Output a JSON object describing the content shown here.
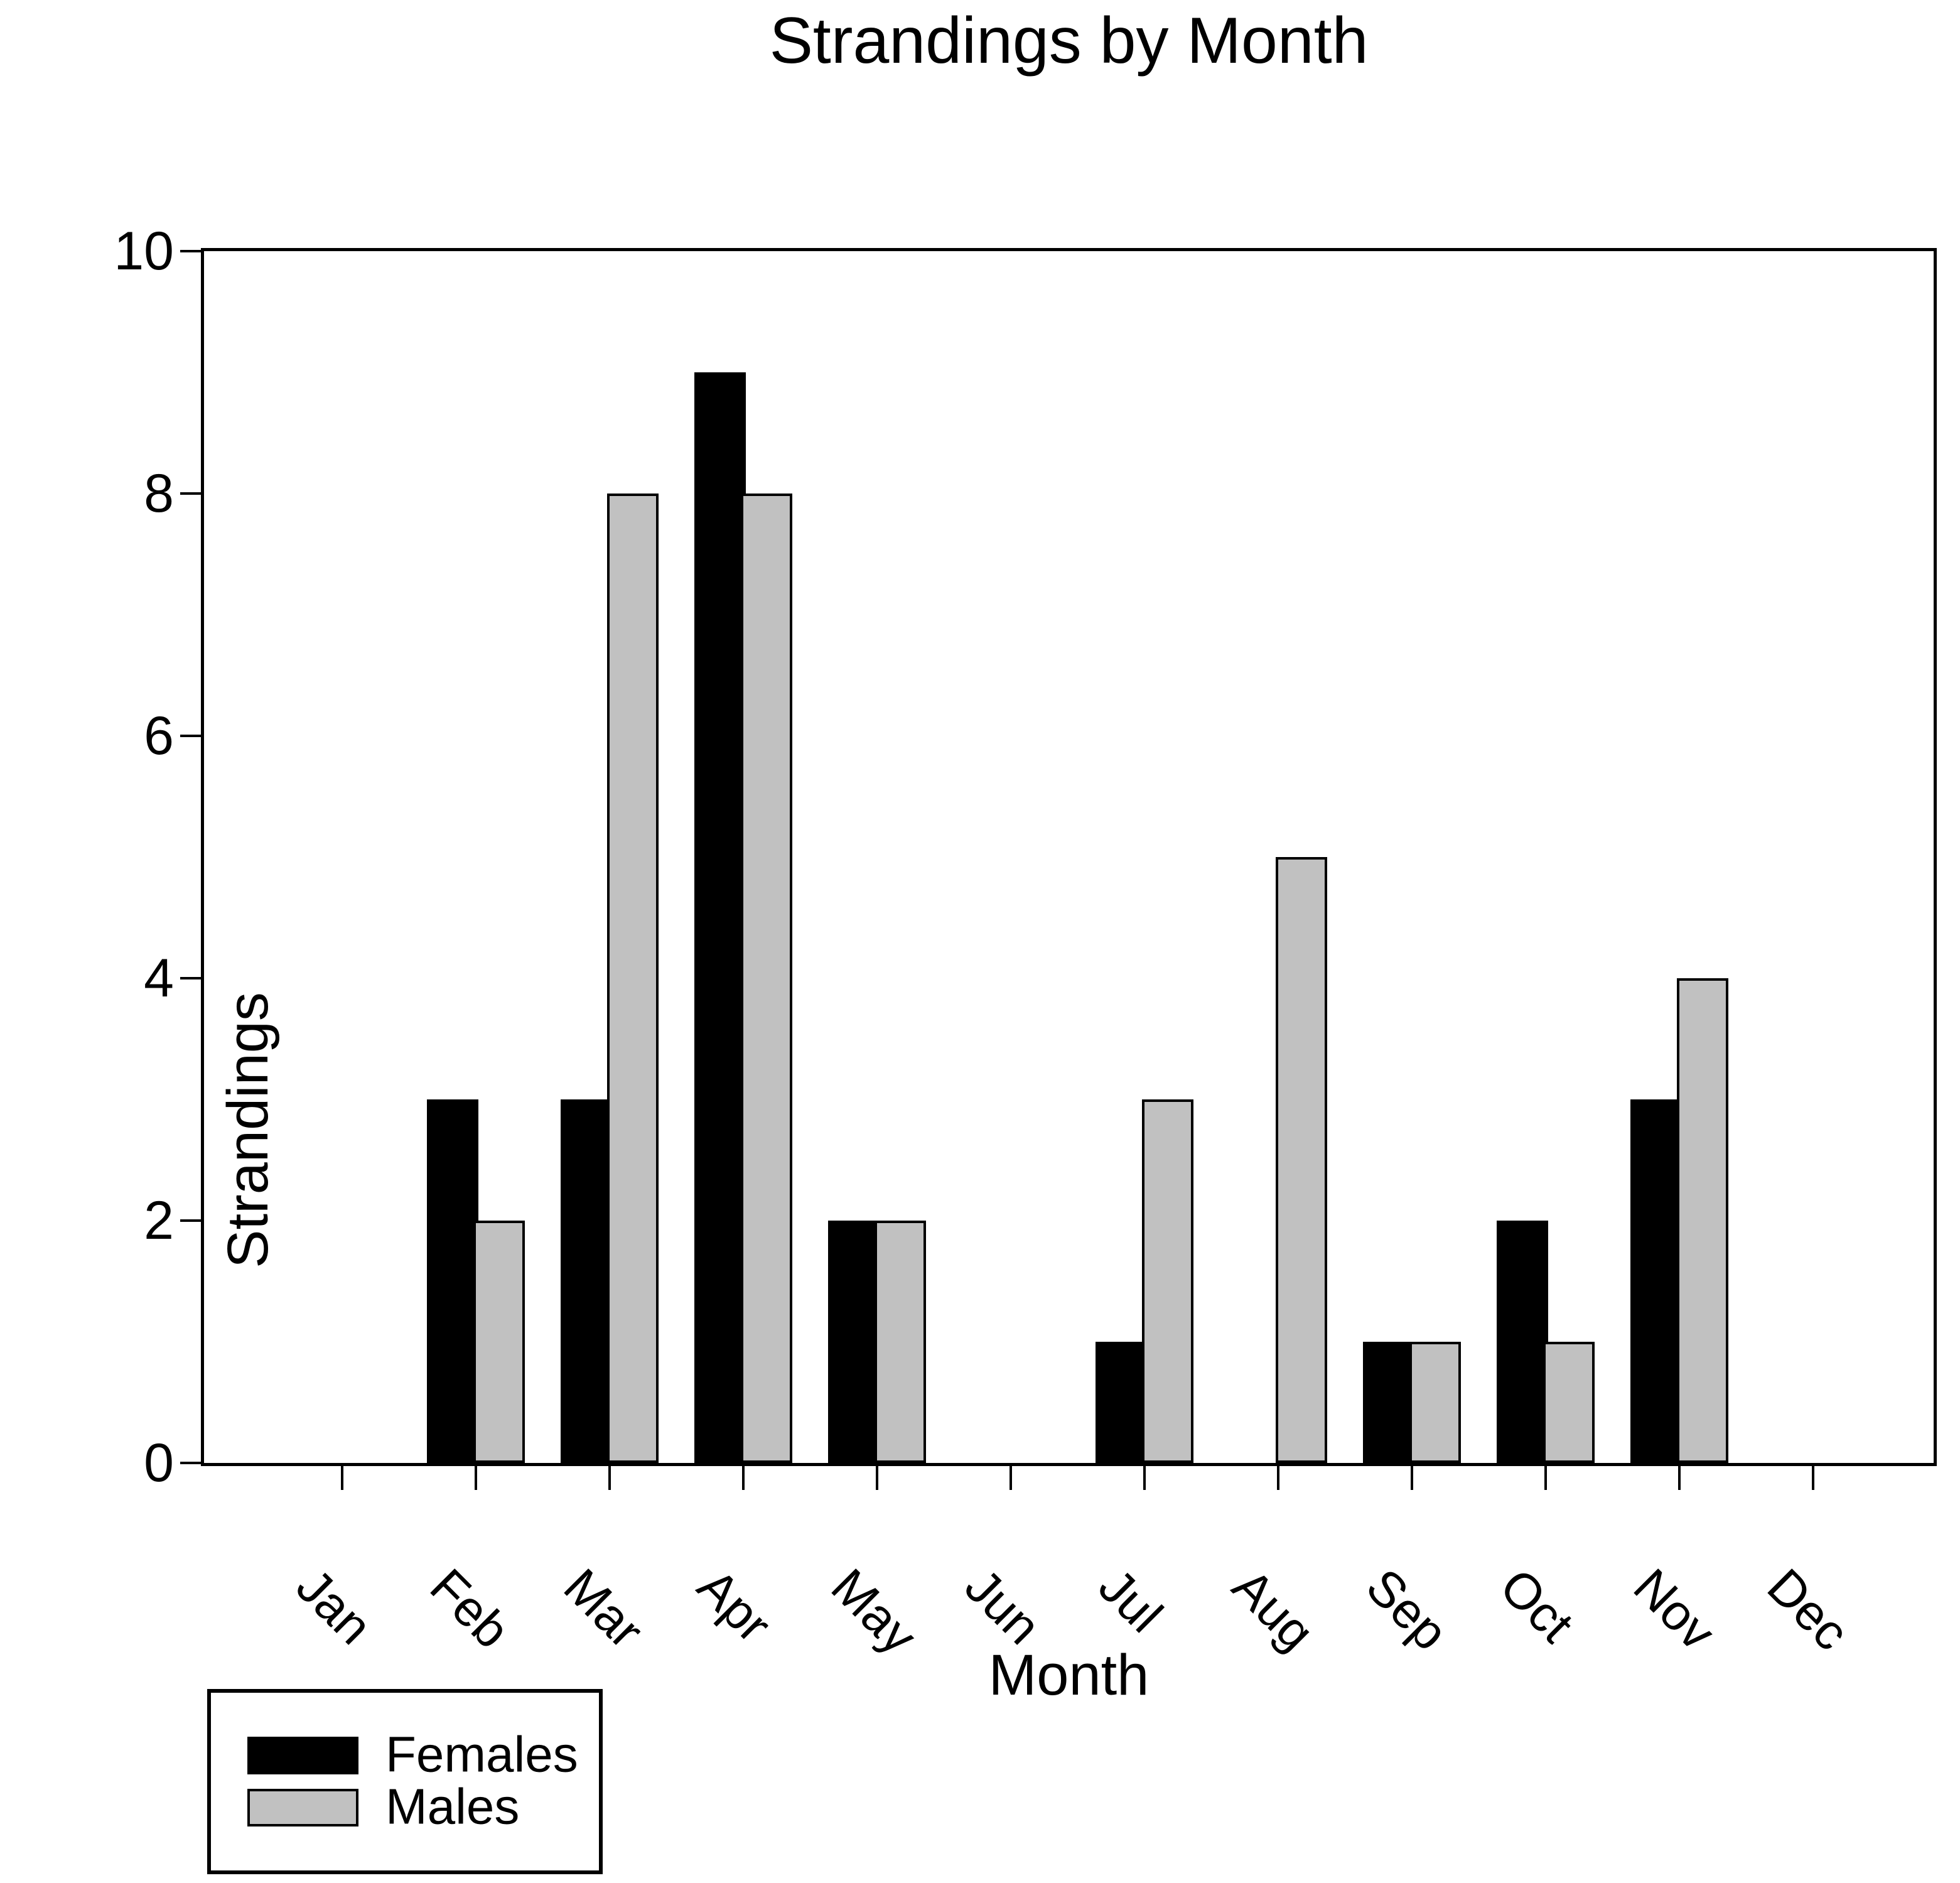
{
  "title": "Strandings by Month",
  "axes": {
    "x_label": "Month",
    "y_label": "Strandings",
    "y_ticks": [
      0,
      2,
      4,
      6,
      8,
      10
    ],
    "y_max": 10
  },
  "colors": {
    "females": "#000000",
    "males": "#c1c1c1",
    "frame": "#000000",
    "background": "#ffffff"
  },
  "legend": {
    "items": [
      {
        "label": "Females",
        "color": "#000000"
      },
      {
        "label": "Males",
        "color": "#c1c1c1"
      }
    ]
  },
  "chart_data": {
    "type": "bar",
    "title": "Strandings by Month",
    "xlabel": "Month",
    "ylabel": "Strandings",
    "ylim": [
      0,
      10
    ],
    "grid": false,
    "legend_position": "bottom-left-outside",
    "categories": [
      "Jan",
      "Feb",
      "Mar",
      "Apr",
      "May",
      "Jun",
      "Jul",
      "Aug",
      "Sep",
      "Oct",
      "Nov",
      "Dec"
    ],
    "series": [
      {
        "name": "Females",
        "color": "#000000",
        "values": [
          0,
          3,
          3,
          9,
          2,
          0,
          1,
          0,
          1,
          2,
          3,
          0
        ]
      },
      {
        "name": "Males",
        "color": "#c1c1c1",
        "values": [
          0,
          2,
          8,
          8,
          2,
          0,
          3,
          5,
          1,
          1,
          4,
          0
        ]
      }
    ]
  }
}
